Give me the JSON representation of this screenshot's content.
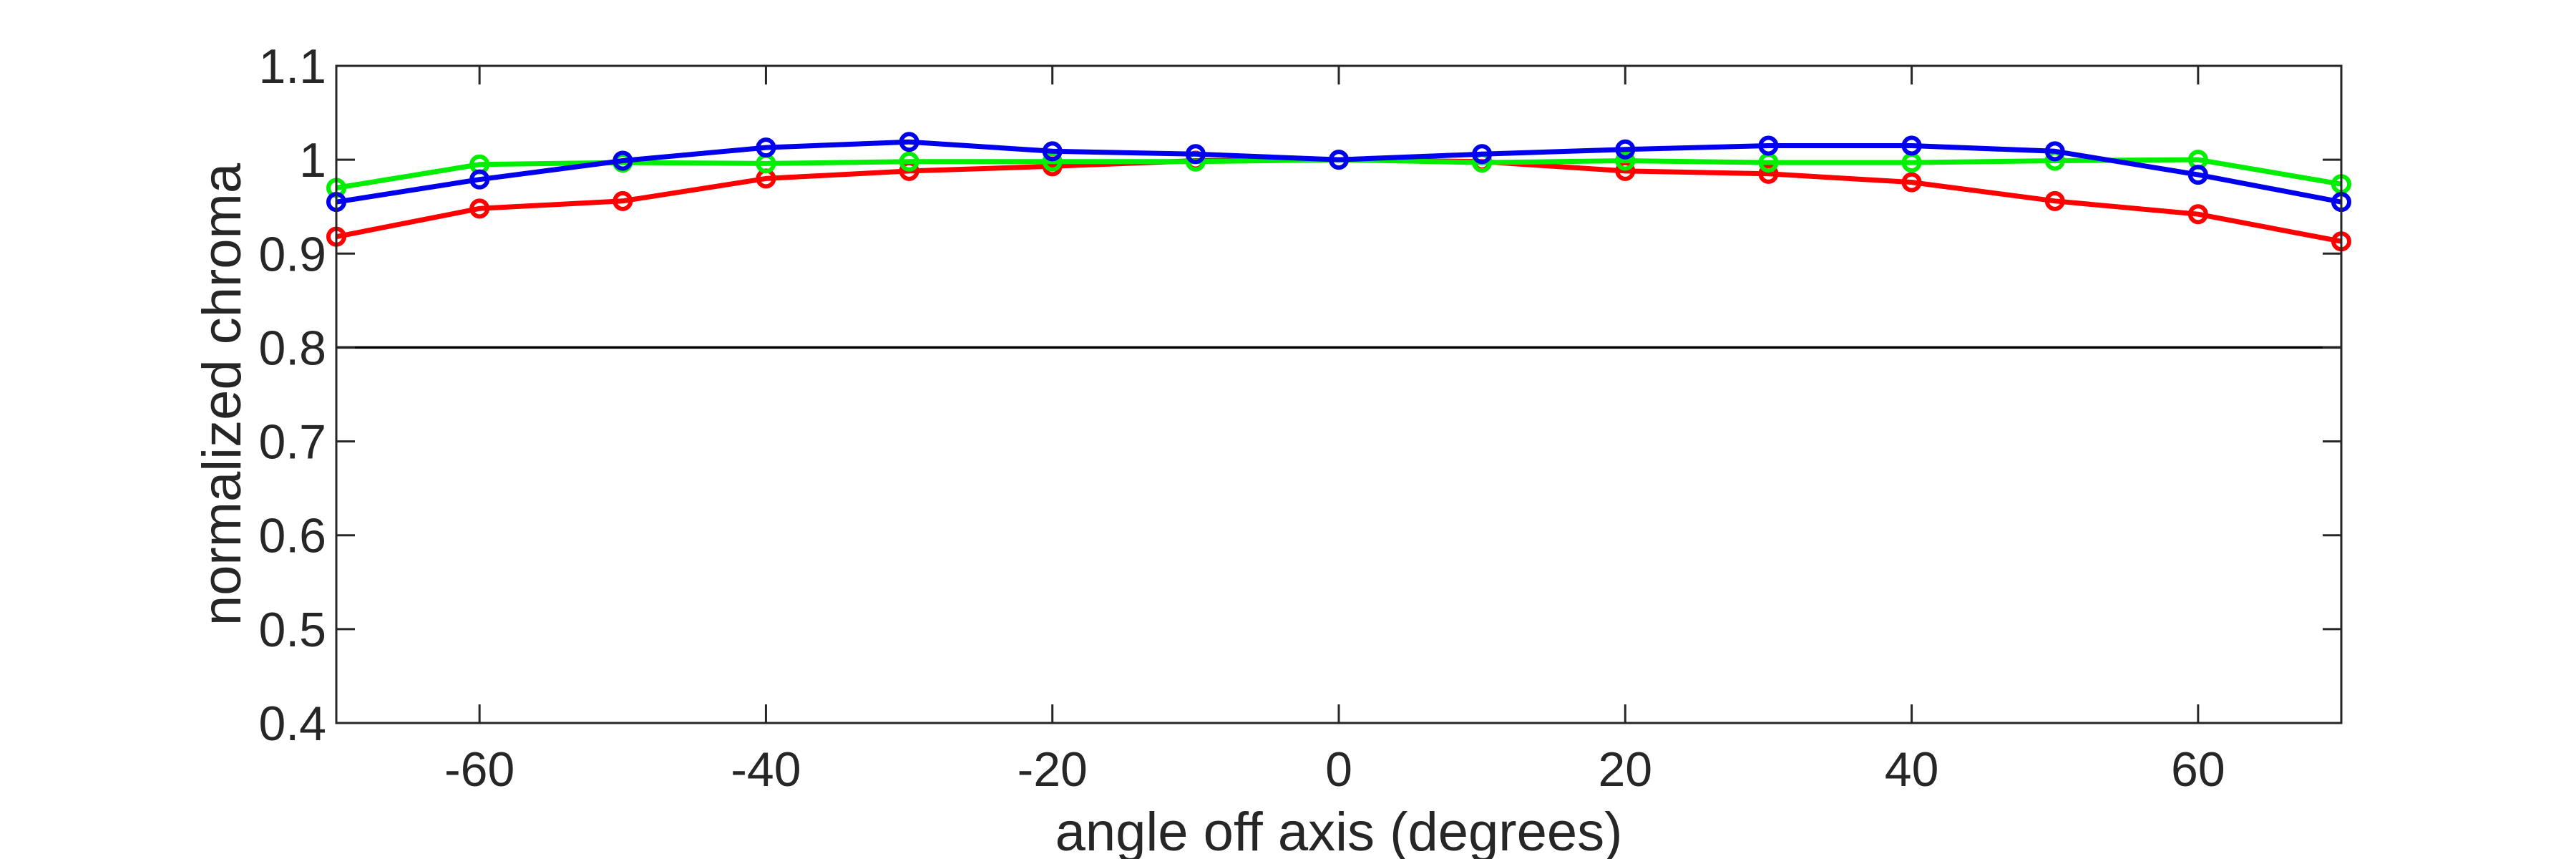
{
  "chart_data": {
    "type": "line",
    "title": "",
    "xlabel": "angle off axis (degrees)",
    "ylabel": "normalized chroma",
    "xlim": [
      -70,
      70
    ],
    "ylim": [
      0.4,
      1.1
    ],
    "x_ticks": [
      -60,
      -40,
      -20,
      0,
      20,
      40,
      60
    ],
    "x_tick_labels": [
      "-60",
      "-40",
      "-20",
      "0",
      "20",
      "40",
      "60"
    ],
    "y_ticks": [
      0.4,
      0.5,
      0.6,
      0.7,
      0.8,
      0.9,
      1.0,
      1.1
    ],
    "y_tick_labels": [
      "0.4",
      "0.5",
      "0.6",
      "0.7",
      "0.8",
      "0.9",
      "1",
      "1.1"
    ],
    "reference_line": 0.8,
    "grid": false,
    "legend": "none",
    "x": [
      -70,
      -60,
      -50,
      -40,
      -30,
      -20,
      -10,
      0,
      10,
      20,
      30,
      40,
      50,
      60,
      70
    ],
    "series": [
      {
        "color": "#ff0000",
        "values": [
          0.918,
          0.948,
          0.956,
          0.98,
          0.988,
          0.993,
          0.999,
          1.0,
          0.998,
          0.988,
          0.985,
          0.976,
          0.956,
          0.942,
          0.913
        ]
      },
      {
        "color": "#00ee00",
        "values": [
          0.97,
          0.995,
          0.997,
          0.996,
          0.998,
          0.998,
          0.998,
          1.0,
          0.997,
          0.999,
          0.997,
          0.997,
          0.999,
          1.0,
          0.974
        ]
      },
      {
        "color": "#0000ee",
        "values": [
          0.955,
          0.979,
          0.999,
          1.013,
          1.019,
          1.009,
          1.006,
          1.0,
          1.006,
          1.011,
          1.015,
          1.015,
          1.009,
          0.984,
          0.955
        ]
      }
    ]
  }
}
